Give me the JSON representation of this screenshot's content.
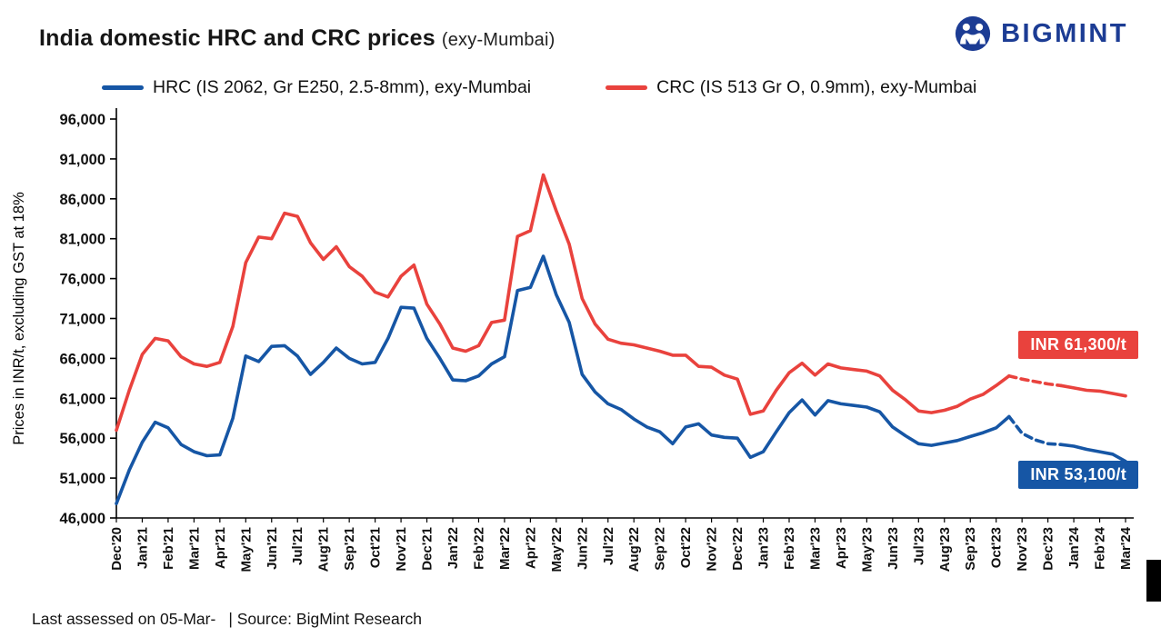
{
  "header": {
    "title": "India domestic HRC and CRC prices",
    "subtitle": "(exy-Mumbai)",
    "logo_text": "BIGMINT",
    "brand_color": "#1C3C94"
  },
  "legend": {
    "hrc": {
      "label": "HRC (IS 2062, Gr E250, 2.5-8mm), exy-Mumbai",
      "color": "#1656A5"
    },
    "crc": {
      "label": "CRC (IS 513 Gr O, 0.9mm), exy-Mumbai",
      "color": "#E9423D"
    }
  },
  "annotations": {
    "crc": {
      "label": "INR 61,300/t",
      "value": 61300,
      "color": "#E9423D"
    },
    "hrc": {
      "label": "INR 53,100/t",
      "value": 53100,
      "color": "#1656A5"
    }
  },
  "footer": {
    "assessed": "Last assessed on 05-Mar-",
    "source": "| Source: BigMint Research"
  },
  "chart_data": {
    "type": "line",
    "title": "India domestic HRC and CRC prices (exy-Mumbai)",
    "xlabel": "",
    "ylabel": "Prices in INR/t, excluding GST at 18%",
    "ylim": [
      46000,
      96000
    ],
    "ytick_step": 5000,
    "grid": false,
    "legend_position": "top",
    "x_step": 0.5,
    "dashed_x_range": [
      34.5,
      36.5
    ],
    "categories": [
      "Dec'20",
      "Jan'21",
      "Feb'21",
      "Mar'21",
      "Apr'21",
      "May'21",
      "Jun'21",
      "Jul'21",
      "Aug'21",
      "Sep'21",
      "Oct'21",
      "Nov'21",
      "Dec'21",
      "Jan'22",
      "Feb'22",
      "Mar'22",
      "Apr'22",
      "May'22",
      "Jun'22",
      "Jul'22",
      "Aug'22",
      "Sep'22",
      "Oct'22",
      "Nov'22",
      "Dec'22",
      "Jan'23",
      "Feb'23",
      "Mar'23",
      "Apr'23",
      "May'23",
      "Jun'23",
      "Jul'23",
      "Aug'23",
      "Sep'23",
      "Oct'23",
      "Nov'23",
      "Dec'23",
      "Jan'24",
      "Feb'24",
      "Mar'24"
    ],
    "series": [
      {
        "key": "hrc",
        "name": "HRC (IS 2062, Gr E250, 2.5-8mm), exy-Mumbai",
        "color": "#1656A5",
        "values": [
          47800,
          52000,
          55500,
          58000,
          57300,
          55200,
          54300,
          53800,
          53900,
          58500,
          66300,
          65600,
          67500,
          67600,
          66300,
          64000,
          65500,
          67300,
          66000,
          65300,
          65500,
          68500,
          72400,
          72300,
          68500,
          66000,
          63300,
          63200,
          63800,
          65300,
          66200,
          74500,
          74900,
          78800,
          74000,
          70500,
          64000,
          61800,
          60300,
          59600,
          58400,
          57400,
          56800,
          55300,
          57400,
          57800,
          56400,
          56100,
          56000,
          53600,
          54300,
          56800,
          59200,
          60800,
          58900,
          60700,
          60300,
          60100,
          59900,
          59300,
          57400,
          56300,
          55300,
          55100,
          55400,
          55700,
          56200,
          56700,
          57300,
          58700,
          56600,
          55800,
          55300,
          55200,
          55000,
          54600,
          54300,
          54000,
          53100
        ]
      },
      {
        "key": "crc",
        "name": "CRC (IS 513 Gr O, 0.9mm), exy-Mumbai",
        "color": "#E9423D",
        "values": [
          57000,
          62000,
          66500,
          68500,
          68200,
          66200,
          65300,
          65000,
          65500,
          70000,
          78000,
          81200,
          81000,
          84200,
          83800,
          80500,
          78400,
          80000,
          77500,
          76300,
          74300,
          73700,
          76300,
          77700,
          72800,
          70300,
          67300,
          66900,
          67600,
          70500,
          70800,
          81300,
          82000,
          89000,
          84500,
          80300,
          73500,
          70300,
          68400,
          67900,
          67700,
          67300,
          66900,
          66400,
          66400,
          65000,
          64900,
          63900,
          63400,
          59000,
          59400,
          62000,
          64200,
          65400,
          63900,
          65300,
          64800,
          64600,
          64400,
          63800,
          62000,
          60800,
          59400,
          59200,
          59500,
          60000,
          60900,
          61500,
          62600,
          63800,
          63400,
          63100,
          62800,
          62600,
          62300,
          62000,
          61900,
          61600,
          61300
        ]
      }
    ]
  }
}
